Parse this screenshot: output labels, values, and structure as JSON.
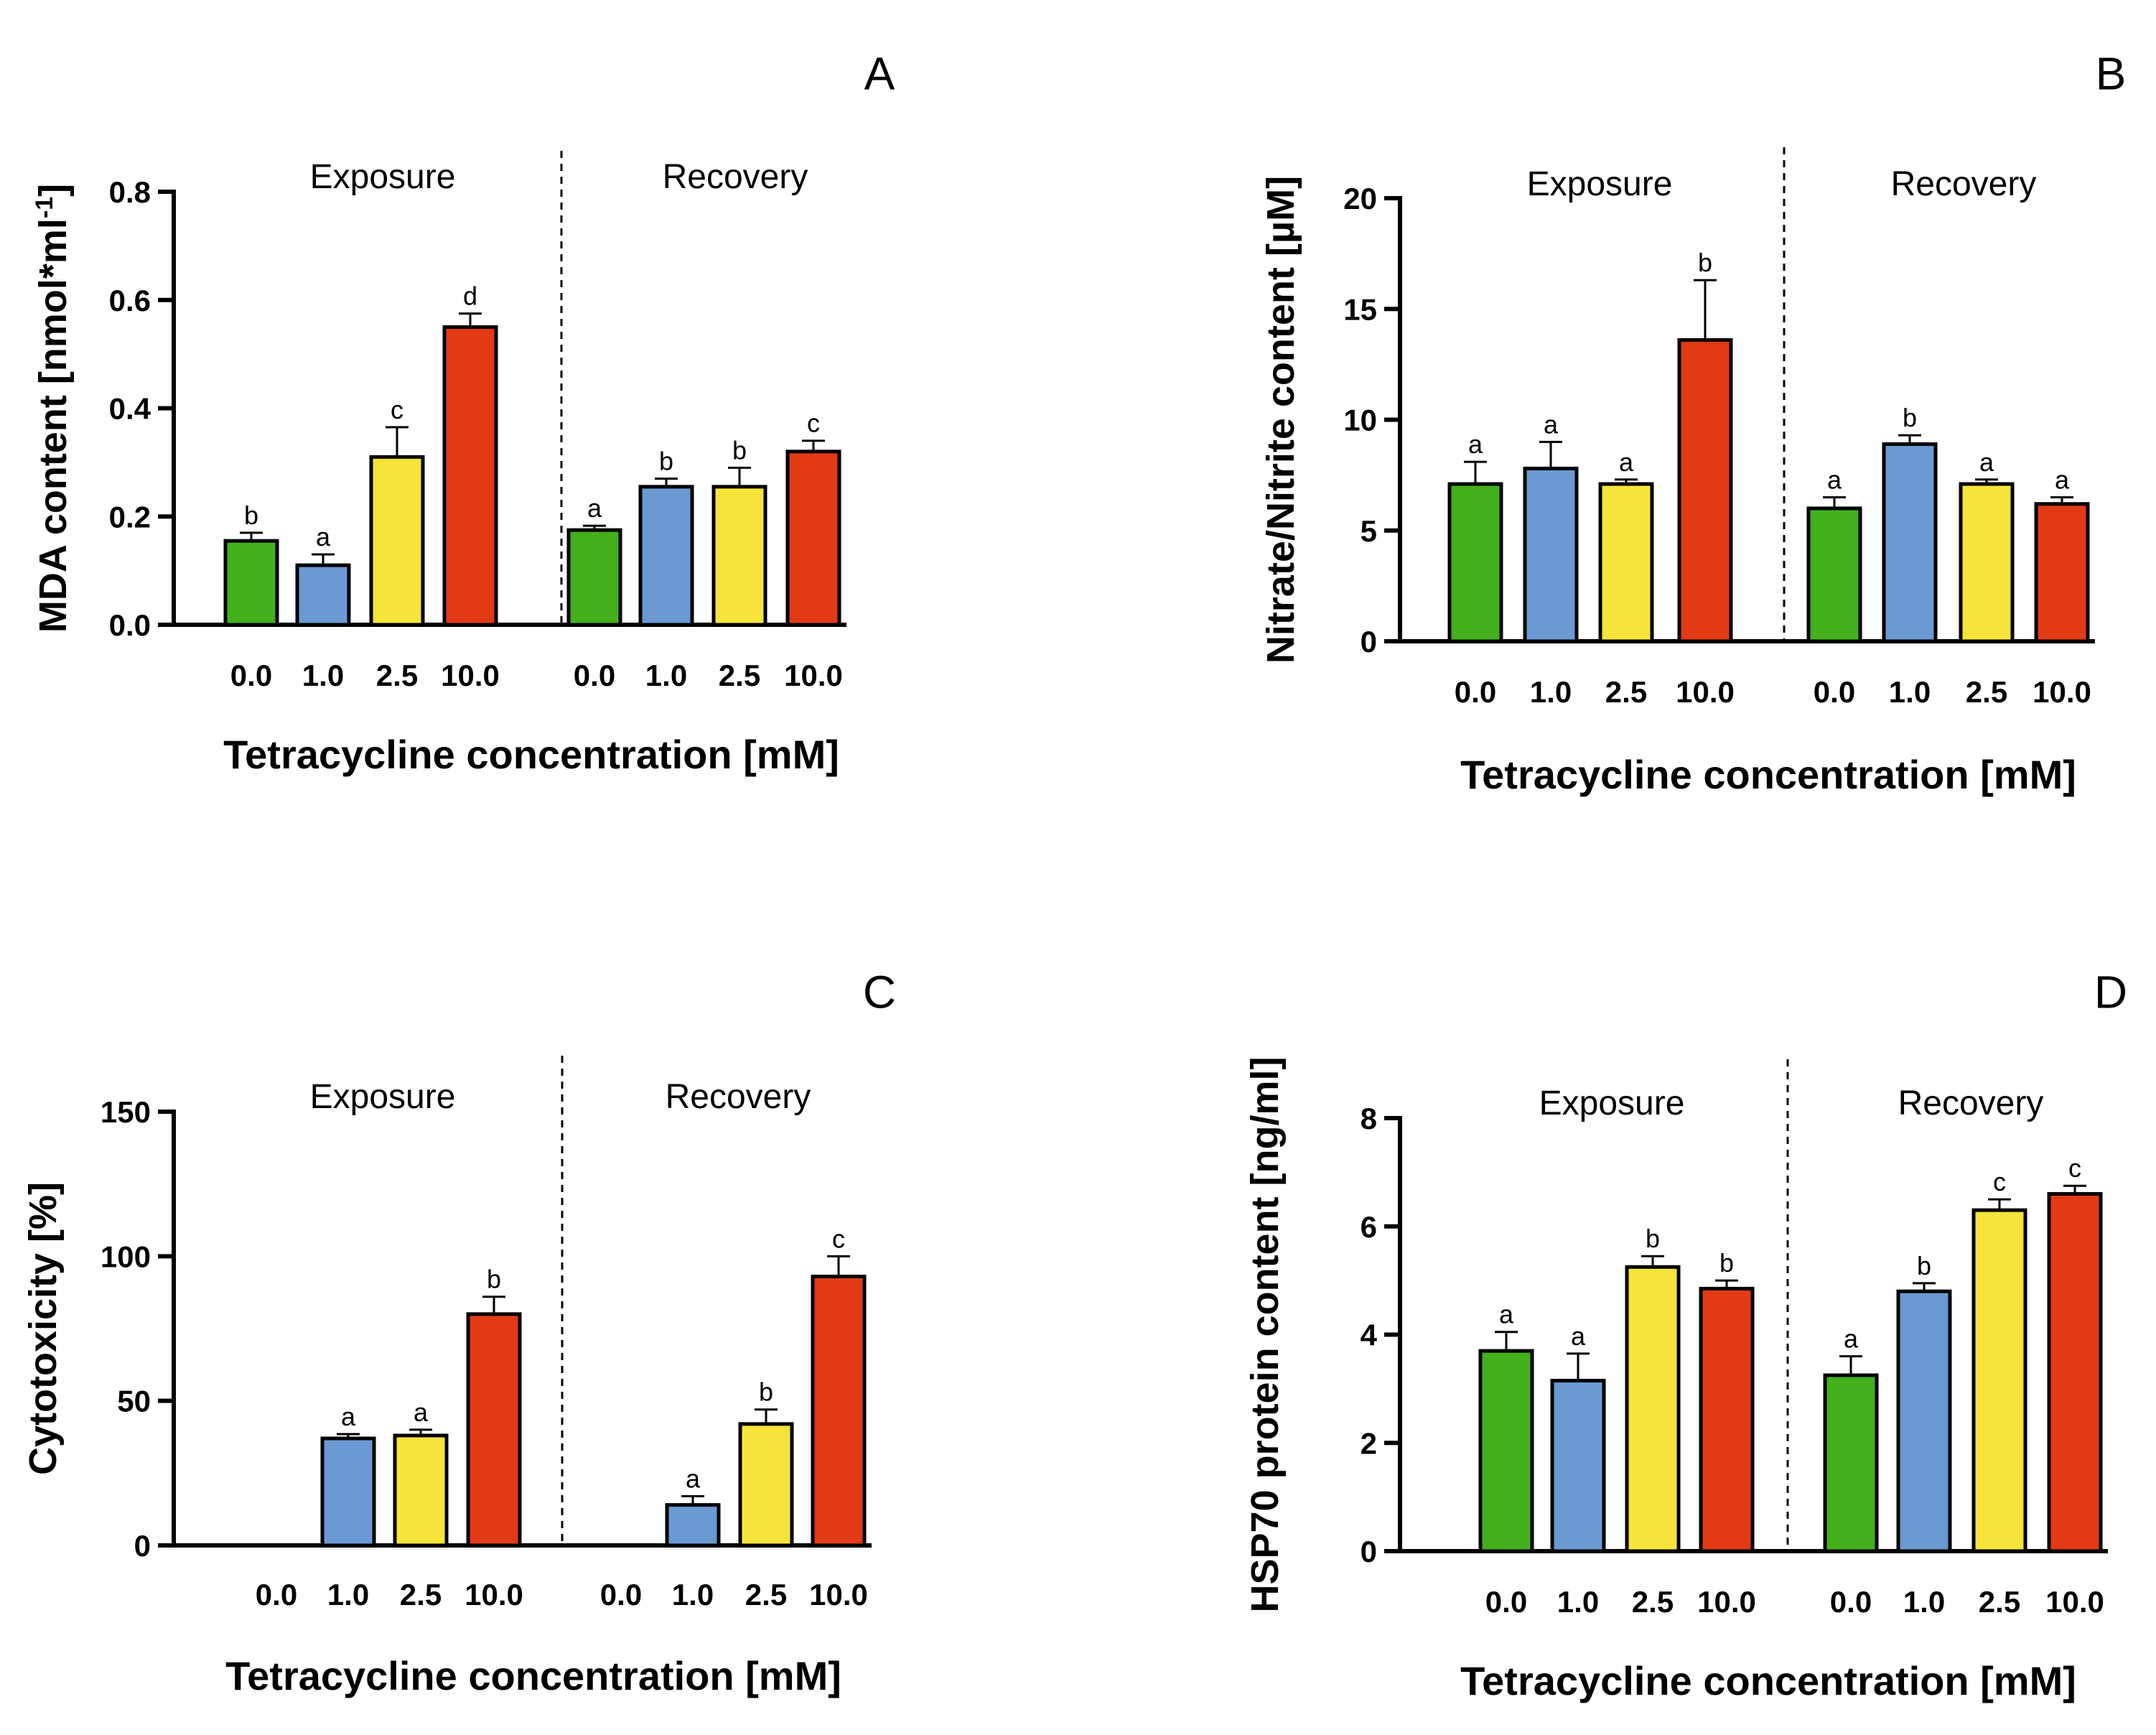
{
  "figure": {
    "colors": [
      "#43b01c",
      "#6b99d3",
      "#f6e43a",
      "#e23a15"
    ]
  },
  "chart_data": [
    {
      "type": "bar",
      "panel": "A",
      "groups": [
        "Exposure",
        "Recovery"
      ],
      "categories": [
        "0.0",
        "1.0",
        "2.5",
        "10.0"
      ],
      "series": [
        {
          "name": "Exposure",
          "values": [
            0.155,
            0.11,
            0.31,
            0.55
          ],
          "errors": [
            0.015,
            0.02,
            0.055,
            0.025
          ],
          "letters": [
            "b",
            "a",
            "c",
            "d"
          ]
        },
        {
          "name": "Recovery",
          "values": [
            0.175,
            0.255,
            0.255,
            0.32
          ],
          "errors": [
            0.008,
            0.015,
            0.035,
            0.02
          ],
          "letters": [
            "a",
            "b",
            "b",
            "c"
          ]
        }
      ],
      "ylabel_main": "MDA content [nmol*ml",
      "ylabel_sup": "-1",
      "ylabel_end": "]",
      "xlabel": "Tetracycline concentration [mM]",
      "ylim": [
        0,
        0.8
      ],
      "yticks": [
        0,
        0.2,
        0.4,
        0.6,
        0.8
      ],
      "ytick_labels": [
        "0.0",
        "0.2",
        "0.4",
        "0.6",
        "0.8"
      ]
    },
    {
      "type": "bar",
      "panel": "B",
      "groups": [
        "Exposure",
        "Recovery"
      ],
      "categories": [
        "0.0",
        "1.0",
        "2.5",
        "10.0"
      ],
      "series": [
        {
          "name": "Exposure",
          "values": [
            7.1,
            7.8,
            7.1,
            13.6
          ],
          "errors": [
            1.0,
            1.2,
            0.2,
            2.7
          ],
          "letters": [
            "a",
            "a",
            "a",
            "b"
          ]
        },
        {
          "name": "Recovery",
          "values": [
            6.0,
            8.9,
            7.1,
            6.2
          ],
          "errors": [
            0.5,
            0.4,
            0.2,
            0.3
          ],
          "letters": [
            "a",
            "b",
            "a",
            "a"
          ]
        }
      ],
      "ylabel_main": "Nitrate/Nitrite content [µM]",
      "ylabel_sup": "",
      "ylabel_end": "",
      "xlabel": "Tetracycline concentration [mM]",
      "ylim": [
        0,
        20
      ],
      "yticks": [
        0,
        5,
        10,
        15,
        20
      ],
      "ytick_labels": [
        "0",
        "5",
        "10",
        "15",
        "20"
      ]
    },
    {
      "type": "bar",
      "panel": "C",
      "groups": [
        "Exposure",
        "Recovery"
      ],
      "categories": [
        "0.0",
        "1.0",
        "2.5",
        "10.0"
      ],
      "series": [
        {
          "name": "Exposure",
          "values": [
            0,
            37,
            38,
            80
          ],
          "errors": [
            0,
            1.5,
            2,
            6
          ],
          "letters": [
            "",
            "a",
            "a",
            "b"
          ]
        },
        {
          "name": "Recovery",
          "values": [
            0,
            14,
            42,
            93
          ],
          "errors": [
            0,
            3,
            5,
            7
          ],
          "letters": [
            "",
            "a",
            "b",
            "c"
          ]
        }
      ],
      "ylabel_main": "Cytotoxicity [%]",
      "ylabel_sup": "",
      "ylabel_end": "",
      "xlabel": "Tetracycline concentration [mM]",
      "ylim": [
        0,
        150
      ],
      "yticks": [
        0,
        50,
        100,
        150
      ],
      "ytick_labels": [
        "0",
        "50",
        "100",
        "150"
      ]
    },
    {
      "type": "bar",
      "panel": "D",
      "groups": [
        "Exposure",
        "Recovery"
      ],
      "categories": [
        "0.0",
        "1.0",
        "2.5",
        "10.0"
      ],
      "series": [
        {
          "name": "Exposure",
          "values": [
            3.7,
            3.15,
            5.25,
            4.85
          ],
          "errors": [
            0.35,
            0.5,
            0.2,
            0.15
          ],
          "letters": [
            "a",
            "a",
            "b",
            "b"
          ]
        },
        {
          "name": "Recovery",
          "values": [
            3.25,
            4.8,
            6.3,
            6.6
          ],
          "errors": [
            0.35,
            0.15,
            0.2,
            0.15
          ],
          "letters": [
            "a",
            "b",
            "c",
            "c"
          ]
        }
      ],
      "ylabel_main": "HSP70 protein content [ng/ml]",
      "ylabel_sup": "",
      "ylabel_end": "",
      "xlabel": "Tetracycline concentration [mM]",
      "ylim": [
        0,
        8
      ],
      "yticks": [
        0,
        2,
        4,
        6,
        8
      ],
      "ytick_labels": [
        "0",
        "2",
        "4",
        "6",
        "8"
      ]
    }
  ]
}
